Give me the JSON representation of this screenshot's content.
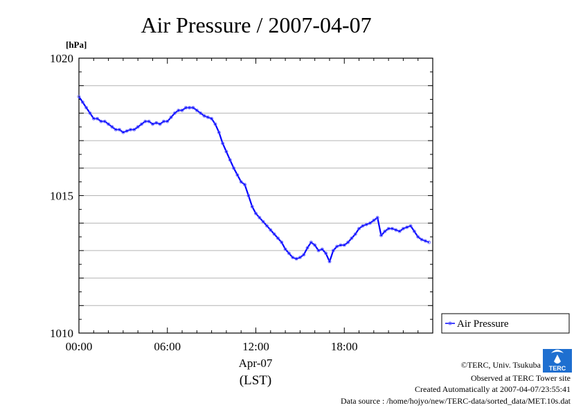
{
  "chart_data": {
    "type": "line",
    "title": "Air Pressure / 2007-04-07",
    "ylabel": "[hPa]",
    "xlabel_line1": "Apr-07",
    "xlabel_line2": "(LST)",
    "ylim": [
      1010,
      1020
    ],
    "xlim": [
      0,
      24
    ],
    "x_unit": "hours (LST)",
    "y_ticks": [
      {
        "value": 1010,
        "label": "1010"
      },
      {
        "value": 1015,
        "label": "1015"
      },
      {
        "value": 1020,
        "label": "1020"
      }
    ],
    "x_ticks": [
      {
        "value": 0,
        "label": "00:00"
      },
      {
        "value": 6,
        "label": "06:00"
      },
      {
        "value": 12,
        "label": "12:00"
      },
      {
        "value": 18,
        "label": "18:00"
      }
    ],
    "grid": true,
    "legend_position": "right",
    "series": [
      {
        "name": "Air Pressure",
        "color": "#0000ff",
        "x": [
          0.0,
          0.25,
          0.5,
          0.75,
          1.0,
          1.25,
          1.5,
          1.75,
          2.0,
          2.25,
          2.5,
          2.75,
          3.0,
          3.25,
          3.5,
          3.75,
          4.0,
          4.25,
          4.5,
          4.75,
          5.0,
          5.25,
          5.5,
          5.75,
          6.0,
          6.25,
          6.5,
          6.75,
          7.0,
          7.25,
          7.5,
          7.75,
          8.0,
          8.25,
          8.5,
          8.75,
          9.0,
          9.25,
          9.5,
          9.75,
          10.0,
          10.25,
          10.5,
          10.75,
          11.0,
          11.25,
          11.5,
          11.75,
          12.0,
          12.25,
          12.5,
          12.75,
          13.0,
          13.25,
          13.5,
          13.75,
          14.0,
          14.25,
          14.5,
          14.75,
          15.0,
          15.25,
          15.5,
          15.75,
          16.0,
          16.25,
          16.5,
          16.75,
          17.0,
          17.25,
          17.5,
          17.75,
          18.0,
          18.25,
          18.5,
          18.75,
          19.0,
          19.25,
          19.5,
          19.75,
          20.0,
          20.25,
          20.5,
          20.75,
          21.0,
          21.25,
          21.5,
          21.75,
          22.0,
          22.25,
          22.5,
          22.75,
          23.0,
          23.25,
          23.5,
          23.75
        ],
        "y": [
          1018.6,
          1018.4,
          1018.2,
          1018.0,
          1017.8,
          1017.8,
          1017.7,
          1017.7,
          1017.6,
          1017.5,
          1017.4,
          1017.4,
          1017.3,
          1017.35,
          1017.4,
          1017.4,
          1017.5,
          1017.6,
          1017.7,
          1017.7,
          1017.6,
          1017.65,
          1017.6,
          1017.7,
          1017.7,
          1017.85,
          1018.0,
          1018.1,
          1018.1,
          1018.2,
          1018.2,
          1018.2,
          1018.1,
          1018.0,
          1017.9,
          1017.85,
          1017.8,
          1017.6,
          1017.3,
          1016.9,
          1016.6,
          1016.3,
          1016.0,
          1015.75,
          1015.5,
          1015.4,
          1015.0,
          1014.6,
          1014.35,
          1014.2,
          1014.05,
          1013.9,
          1013.75,
          1013.6,
          1013.45,
          1013.3,
          1013.05,
          1012.9,
          1012.75,
          1012.7,
          1012.75,
          1012.85,
          1013.1,
          1013.3,
          1013.2,
          1013.0,
          1013.05,
          1012.9,
          1012.6,
          1013.0,
          1013.15,
          1013.2,
          1013.2,
          1013.3,
          1013.45,
          1013.6,
          1013.8,
          1013.9,
          1013.95,
          1014.0,
          1014.1,
          1014.2,
          1013.55,
          1013.7,
          1013.8,
          1013.8,
          1013.75,
          1013.7,
          1013.8,
          1013.85,
          1013.9,
          1013.7,
          1013.5,
          1013.4,
          1013.35,
          1013.3
        ]
      }
    ]
  },
  "credits": {
    "copyright": "©TERC, Univ. Tsukuba",
    "observed": "Observed at TERC Tower site",
    "created": "Created Automatically at 2007-04-07/23:55:41",
    "source": "Data source : /home/hojyo/new/TERC-data/sorted_data/MET.10s.dat",
    "logo_text": "TERC"
  }
}
